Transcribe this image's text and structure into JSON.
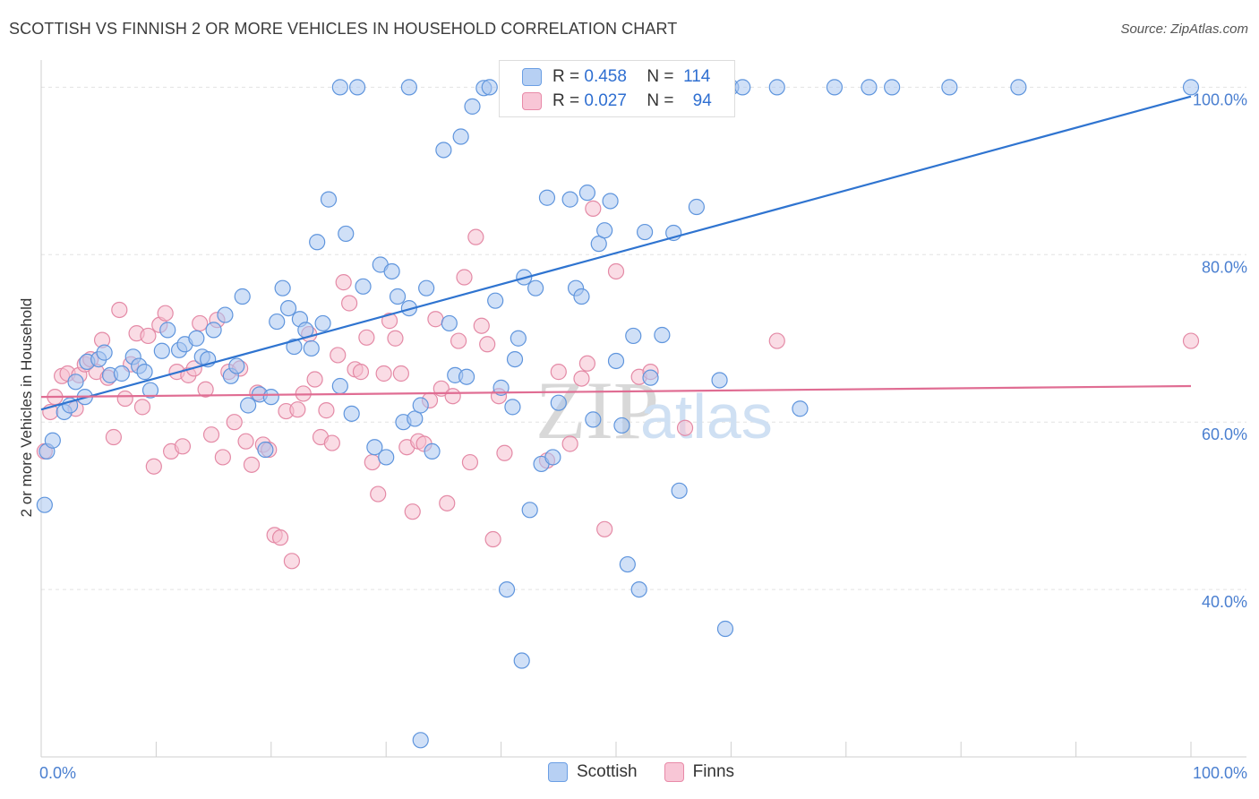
{
  "title": "SCOTTISH VS FINNISH 2 OR MORE VEHICLES IN HOUSEHOLD CORRELATION CHART",
  "source": "Source: ZipAtlas.com",
  "legend": {
    "scottish": {
      "r_label": "R =",
      "r_value": "0.458",
      "n_label": "N =",
      "n_value": "114"
    },
    "finnish": {
      "r_label": "R =",
      "r_value": "0.027",
      "n_label": "N =",
      "n_value": "94"
    }
  },
  "bottom_legend": {
    "scottish": "Scottish",
    "finnish": "Finns"
  },
  "watermark": {
    "zip": "ZIP",
    "atlas": "atlas"
  },
  "colors": {
    "scottish_fill": "#a9c7f0",
    "scottish_stroke": "#5f95dd",
    "scottish_line": "#2f74d0",
    "finnish_fill": "#f6bfd0",
    "finnish_stroke": "#e48aa6",
    "finnish_line": "#e06d93"
  },
  "chart_data": {
    "type": "scatter",
    "title": "SCOTTISH VS FINNISH 2 OR MORE VEHICLES IN HOUSEHOLD CORRELATION CHART",
    "xlabel": "",
    "ylabel": "2 or more Vehicles in Household",
    "xlim": [
      0,
      100
    ],
    "ylim": [
      20,
      104
    ],
    "x_tick_labels": [
      "0.0%",
      "100.0%"
    ],
    "y_ticks": [
      40,
      60,
      80,
      100
    ],
    "y_tick_labels": [
      "40.0%",
      "60.0%",
      "80.0%",
      "100.0%"
    ],
    "grid": true,
    "series": [
      {
        "name": "Scottish",
        "trend": {
          "x": [
            0,
            100
          ],
          "y": [
            61.5,
            98.9
          ]
        },
        "points": [
          [
            0.3,
            50.1
          ],
          [
            0.5,
            56.5
          ],
          [
            1.0,
            57.8
          ],
          [
            2.0,
            61.2
          ],
          [
            2.5,
            62.0
          ],
          [
            3.0,
            64.8
          ],
          [
            3.8,
            63.0
          ],
          [
            4.0,
            67.2
          ],
          [
            5.0,
            67.5
          ],
          [
            5.5,
            68.3
          ],
          [
            6.0,
            65.6
          ],
          [
            7.0,
            65.8
          ],
          [
            8.0,
            67.8
          ],
          [
            8.5,
            66.7
          ],
          [
            9.0,
            66.0
          ],
          [
            9.5,
            63.8
          ],
          [
            10.5,
            68.5
          ],
          [
            11.0,
            71.0
          ],
          [
            12.0,
            68.6
          ],
          [
            12.5,
            69.3
          ],
          [
            13.5,
            70.0
          ],
          [
            14.0,
            67.8
          ],
          [
            14.5,
            67.5
          ],
          [
            15.0,
            71.0
          ],
          [
            16.0,
            72.8
          ],
          [
            16.5,
            65.5
          ],
          [
            17.0,
            66.7
          ],
          [
            17.5,
            75.0
          ],
          [
            18.0,
            62.0
          ],
          [
            19.0,
            63.3
          ],
          [
            19.5,
            56.7
          ],
          [
            20.0,
            63.0
          ],
          [
            20.5,
            72.0
          ],
          [
            21.0,
            76.0
          ],
          [
            21.5,
            73.6
          ],
          [
            22.0,
            69.0
          ],
          [
            22.5,
            72.3
          ],
          [
            23.0,
            71.0
          ],
          [
            23.5,
            68.8
          ],
          [
            24.0,
            81.5
          ],
          [
            24.5,
            71.8
          ],
          [
            25.0,
            86.6
          ],
          [
            26.0,
            64.3
          ],
          [
            26.5,
            82.5
          ],
          [
            27.0,
            61.0
          ],
          [
            28.0,
            76.2
          ],
          [
            29.0,
            57.0
          ],
          [
            29.5,
            78.8
          ],
          [
            30.0,
            55.8
          ],
          [
            30.5,
            78.0
          ],
          [
            31.0,
            75.0
          ],
          [
            31.5,
            60.0
          ],
          [
            32.0,
            73.6
          ],
          [
            32.5,
            60.4
          ],
          [
            33.0,
            62.0
          ],
          [
            33.5,
            76.0
          ],
          [
            34.0,
            56.5
          ],
          [
            35.0,
            92.5
          ],
          [
            35.5,
            71.8
          ],
          [
            36.0,
            65.6
          ],
          [
            36.5,
            94.1
          ],
          [
            37.0,
            65.4
          ],
          [
            37.5,
            97.7
          ],
          [
            38.5,
            99.9
          ],
          [
            39.0,
            100.0
          ],
          [
            39.5,
            74.5
          ],
          [
            40.0,
            64.1
          ],
          [
            40.5,
            40.0
          ],
          [
            41.0,
            61.8
          ],
          [
            41.2,
            67.5
          ],
          [
            41.5,
            70.0
          ],
          [
            41.8,
            31.5
          ],
          [
            42.0,
            77.3
          ],
          [
            42.5,
            49.5
          ],
          [
            43.0,
            76.0
          ],
          [
            43.5,
            55.0
          ],
          [
            44.0,
            86.8
          ],
          [
            44.5,
            55.8
          ],
          [
            45.0,
            62.3
          ],
          [
            46.0,
            86.6
          ],
          [
            46.5,
            76.0
          ],
          [
            47.0,
            75.0
          ],
          [
            47.5,
            87.4
          ],
          [
            48.0,
            60.3
          ],
          [
            48.5,
            81.3
          ],
          [
            49.0,
            82.9
          ],
          [
            49.5,
            86.4
          ],
          [
            50.0,
            67.3
          ],
          [
            50.5,
            59.6
          ],
          [
            51.0,
            43.0
          ],
          [
            51.5,
            70.3
          ],
          [
            52.0,
            40.0
          ],
          [
            52.5,
            82.7
          ],
          [
            53.0,
            65.3
          ],
          [
            54.0,
            70.4
          ],
          [
            55.0,
            82.6
          ],
          [
            55.5,
            51.8
          ],
          [
            57.0,
            85.7
          ],
          [
            59.0,
            65.0
          ],
          [
            59.5,
            35.3
          ],
          [
            60.0,
            100.0
          ],
          [
            61.0,
            100.0
          ],
          [
            64.0,
            100.0
          ],
          [
            66.0,
            61.6
          ],
          [
            69.0,
            100.0
          ],
          [
            72.0,
            100.0
          ],
          [
            74.0,
            100.0
          ],
          [
            79.0,
            100.0
          ],
          [
            85.0,
            100.0
          ],
          [
            100.0,
            100.0
          ],
          [
            32.0,
            100.0
          ],
          [
            33.0,
            22.0
          ],
          [
            27.5,
            100.0
          ],
          [
            26.0,
            100.0
          ]
        ]
      },
      {
        "name": "Finns",
        "trend": {
          "x": [
            0,
            100
          ],
          "y": [
            63.0,
            64.3
          ]
        },
        "points": [
          [
            0.3,
            56.5
          ],
          [
            0.8,
            61.2
          ],
          [
            1.2,
            63.0
          ],
          [
            1.8,
            65.5
          ],
          [
            2.3,
            65.8
          ],
          [
            3.0,
            61.6
          ],
          [
            3.3,
            65.6
          ],
          [
            3.8,
            66.9
          ],
          [
            4.3,
            67.5
          ],
          [
            4.8,
            66.0
          ],
          [
            5.3,
            69.8
          ],
          [
            5.8,
            65.3
          ],
          [
            6.3,
            58.2
          ],
          [
            6.8,
            73.4
          ],
          [
            7.3,
            62.8
          ],
          [
            7.8,
            66.9
          ],
          [
            8.3,
            70.6
          ],
          [
            8.8,
            61.8
          ],
          [
            9.3,
            70.3
          ],
          [
            9.8,
            54.7
          ],
          [
            10.3,
            71.6
          ],
          [
            10.8,
            73.0
          ],
          [
            11.3,
            56.5
          ],
          [
            11.8,
            66.0
          ],
          [
            12.3,
            57.1
          ],
          [
            12.8,
            65.6
          ],
          [
            13.3,
            66.4
          ],
          [
            13.8,
            71.8
          ],
          [
            14.3,
            63.9
          ],
          [
            14.8,
            58.5
          ],
          [
            15.3,
            72.2
          ],
          [
            15.8,
            55.8
          ],
          [
            16.3,
            66.0
          ],
          [
            16.8,
            60.0
          ],
          [
            17.3,
            66.4
          ],
          [
            17.8,
            57.7
          ],
          [
            18.3,
            54.9
          ],
          [
            18.8,
            63.5
          ],
          [
            19.3,
            57.3
          ],
          [
            19.8,
            56.7
          ],
          [
            20.3,
            46.5
          ],
          [
            20.8,
            46.2
          ],
          [
            21.3,
            61.3
          ],
          [
            21.8,
            43.4
          ],
          [
            22.3,
            61.5
          ],
          [
            22.8,
            63.4
          ],
          [
            23.3,
            70.5
          ],
          [
            23.8,
            65.1
          ],
          [
            24.3,
            58.2
          ],
          [
            24.8,
            61.4
          ],
          [
            25.3,
            57.5
          ],
          [
            25.8,
            68.0
          ],
          [
            26.3,
            76.7
          ],
          [
            26.8,
            74.2
          ],
          [
            27.3,
            66.3
          ],
          [
            27.8,
            66.0
          ],
          [
            28.3,
            70.1
          ],
          [
            28.8,
            55.2
          ],
          [
            29.3,
            51.4
          ],
          [
            29.8,
            65.8
          ],
          [
            30.3,
            72.1
          ],
          [
            30.8,
            70.0
          ],
          [
            31.3,
            65.8
          ],
          [
            31.8,
            57.0
          ],
          [
            32.3,
            49.3
          ],
          [
            32.8,
            57.7
          ],
          [
            33.3,
            57.4
          ],
          [
            33.8,
            62.6
          ],
          [
            34.3,
            72.3
          ],
          [
            34.8,
            64.0
          ],
          [
            35.3,
            50.3
          ],
          [
            35.8,
            63.1
          ],
          [
            36.3,
            69.7
          ],
          [
            36.8,
            77.3
          ],
          [
            37.3,
            55.2
          ],
          [
            37.8,
            82.1
          ],
          [
            38.3,
            71.5
          ],
          [
            38.8,
            69.3
          ],
          [
            39.3,
            46.0
          ],
          [
            39.8,
            63.1
          ],
          [
            40.3,
            56.3
          ],
          [
            44.0,
            55.4
          ],
          [
            45.0,
            66.0
          ],
          [
            46.0,
            57.4
          ],
          [
            47.0,
            65.2
          ],
          [
            47.5,
            67.0
          ],
          [
            48.0,
            85.5
          ],
          [
            49.0,
            47.2
          ],
          [
            50.0,
            78.0
          ],
          [
            52.0,
            65.4
          ],
          [
            53.0,
            66.0
          ],
          [
            56.0,
            59.3
          ],
          [
            64.0,
            69.7
          ],
          [
            100.0,
            69.7
          ]
        ]
      }
    ]
  }
}
